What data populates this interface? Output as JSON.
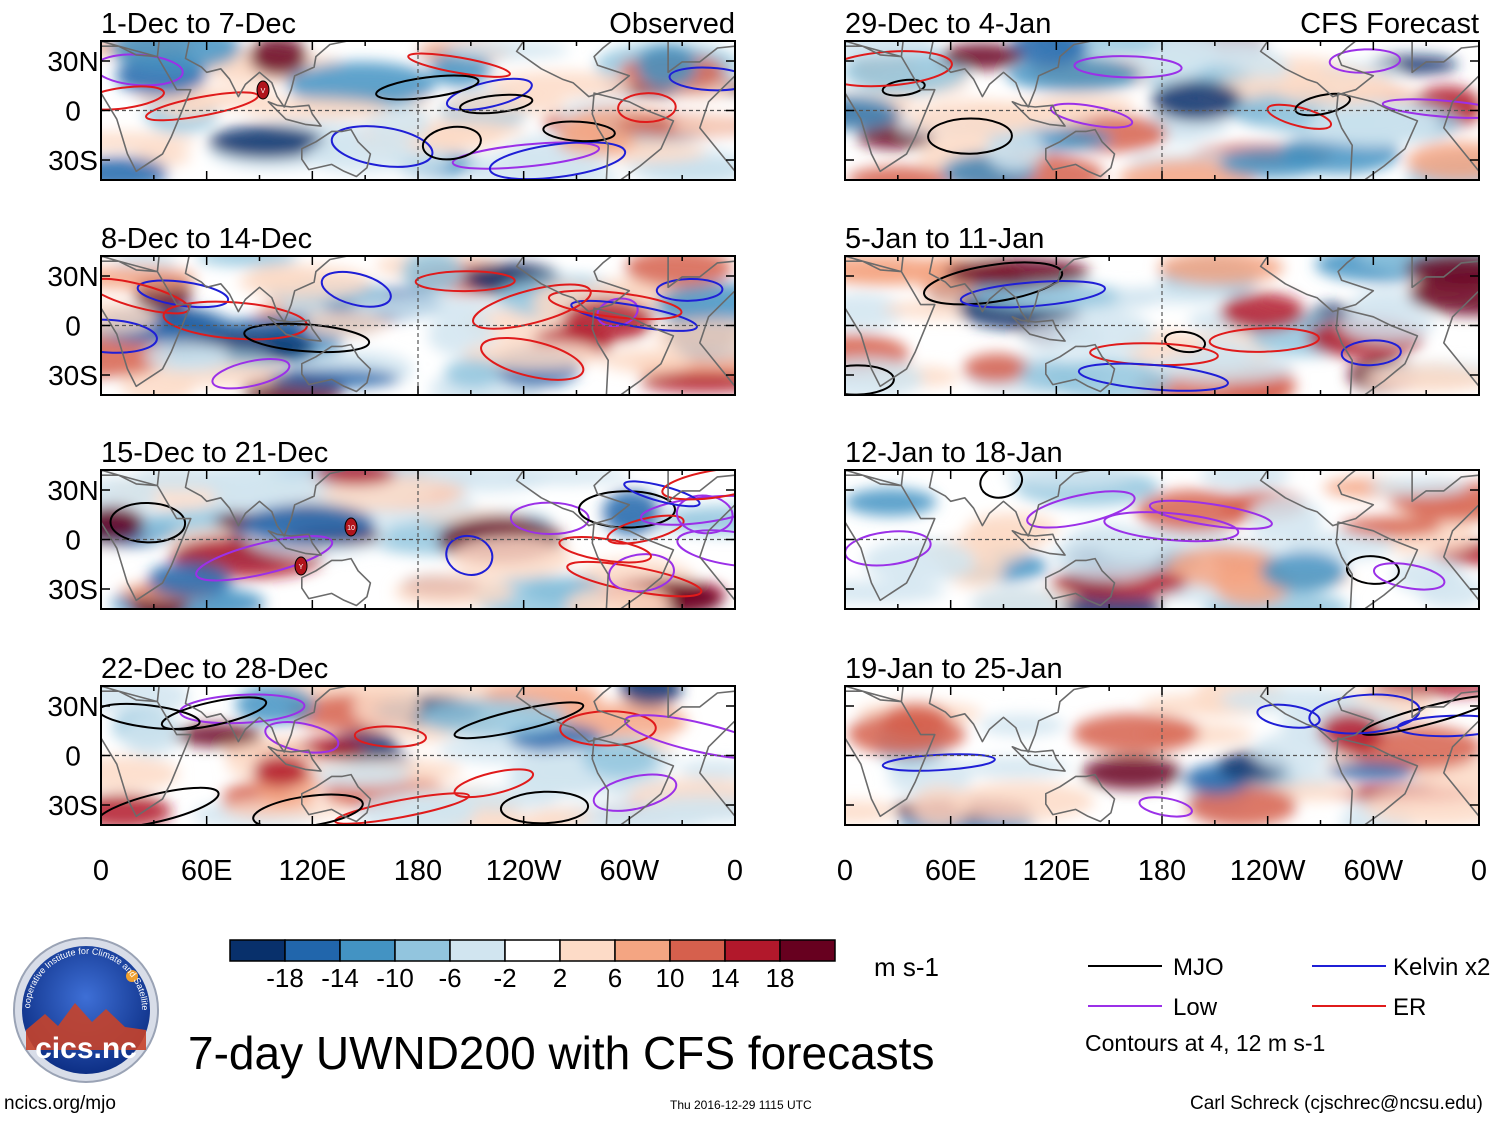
{
  "chart_data": {
    "type": "heatmap",
    "variable": "UWND200",
    "title": "7-day UWND200 with CFS forecasts",
    "x_tick_labels": [
      "0",
      "60E",
      "120E",
      "180",
      "120W",
      "60W",
      "0"
    ],
    "y_tick_labels": [
      "30N",
      "0",
      "30S"
    ],
    "columns": [
      {
        "header": "Observed",
        "panels": [
          "1-Dec to 7-Dec",
          "8-Dec to 14-Dec",
          "15-Dec to 21-Dec",
          "22-Dec to 28-Dec"
        ]
      },
      {
        "header": "CFS Forecast",
        "panels": [
          "29-Dec to 4-Jan",
          "5-Jan to 11-Jan",
          "12-Jan to 18-Jan",
          "19-Jan to 25-Jan"
        ]
      }
    ],
    "colorbar": {
      "levels": [
        "-18",
        "-14",
        "-10",
        "-6",
        "-2",
        "2",
        "6",
        "10",
        "14",
        "18"
      ],
      "colors": [
        "#08306b",
        "#2166ac",
        "#4393c3",
        "#92c5de",
        "#d1e5f0",
        "#ffffff",
        "#fddbc7",
        "#f4a582",
        "#d6604d",
        "#b2182b",
        "#67001f"
      ],
      "units": "m s-1"
    },
    "legend": [
      {
        "label": "MJO",
        "color": "#000000"
      },
      {
        "label": "Kelvin x2",
        "color": "#1f1fd6"
      },
      {
        "label": "Low",
        "color": "#9b30e8"
      },
      {
        "label": "ER",
        "color": "#e01b1b"
      }
    ],
    "contour_note": "Contours at 4, 12 m s-1",
    "storm_markers": [
      {
        "panel": "1-Dec to 7-Dec",
        "label": "V"
      },
      {
        "panel": "15-Dec to 21-Dec",
        "label": "10"
      },
      {
        "panel": "15-Dec to 21-Dec",
        "label": "Y"
      }
    ]
  },
  "logo": {
    "text": "cics.nc",
    "ring_text": "Cooperative Institute for Climate and Satellites"
  },
  "footer": {
    "left": "ncics.org/mjo",
    "timestamp": "Thu 2016-12-29 1115 UTC",
    "right": "Carl Schreck (cjschrec@ncsu.edu)"
  }
}
